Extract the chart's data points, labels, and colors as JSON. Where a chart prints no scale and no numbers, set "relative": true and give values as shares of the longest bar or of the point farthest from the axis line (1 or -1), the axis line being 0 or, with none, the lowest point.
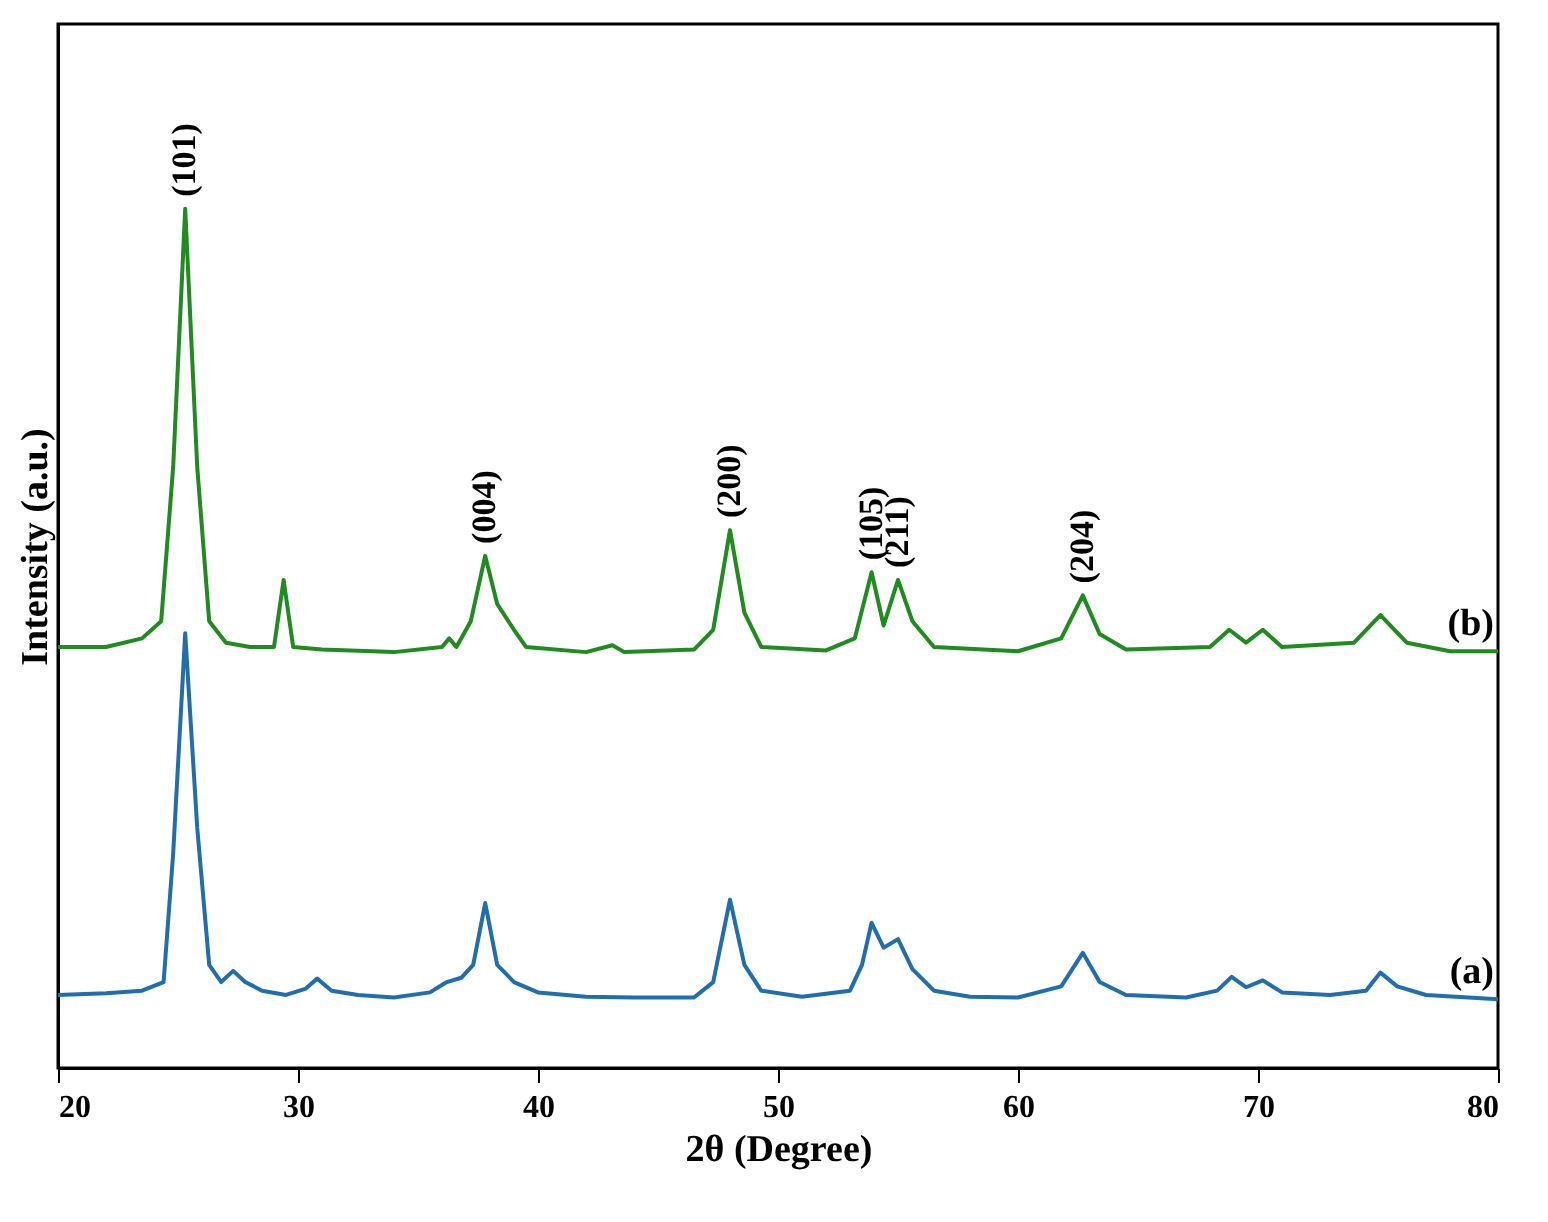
{
  "chart_data": {
    "type": "line",
    "xlabel": "2θ (Degree)",
    "ylabel": "Intensity (a.u.)",
    "relative": true,
    "xlim": [
      20,
      80
    ],
    "xticks": [
      20,
      30,
      40,
      50,
      60,
      70,
      80
    ],
    "grid": false,
    "marker": "none",
    "line_style": "solid",
    "series": [
      {
        "name": "(a)",
        "color": "#1f6fb0",
        "x": [
          20,
          22,
          23.5,
          24.4,
          24.8,
          25.3,
          25.8,
          26.3,
          26.8,
          27.3,
          27.8,
          28.5,
          29.5,
          30.3,
          30.8,
          31.4,
          32.5,
          34,
          35.5,
          36.2,
          36.8,
          37.3,
          37.8,
          38.3,
          39,
          40,
          42,
          44,
          46.5,
          47.3,
          48,
          48.6,
          49.3,
          51,
          53,
          53.5,
          53.9,
          54.4,
          55,
          55.6,
          56.5,
          58,
          60,
          61.8,
          62.7,
          63.4,
          64.5,
          67,
          68.3,
          68.9,
          69.5,
          70.2,
          71,
          73,
          74.5,
          75.1,
          75.8,
          77,
          80
        ],
        "values": [
          0.085,
          0.087,
          0.09,
          0.1,
          0.25,
          0.506,
          0.28,
          0.12,
          0.1,
          0.113,
          0.1,
          0.09,
          0.085,
          0.092,
          0.104,
          0.09,
          0.085,
          0.082,
          0.088,
          0.1,
          0.105,
          0.12,
          0.192,
          0.12,
          0.1,
          0.088,
          0.083,
          0.082,
          0.082,
          0.1,
          0.196,
          0.12,
          0.09,
          0.083,
          0.09,
          0.12,
          0.169,
          0.14,
          0.15,
          0.115,
          0.09,
          0.083,
          0.082,
          0.095,
          0.134,
          0.1,
          0.085,
          0.082,
          0.09,
          0.106,
          0.094,
          0.102,
          0.088,
          0.085,
          0.09,
          0.111,
          0.095,
          0.085,
          0.08
        ]
      },
      {
        "name": "(b)",
        "color": "#1e8c1e",
        "x": [
          20,
          22,
          23.5,
          24.3,
          24.8,
          25.3,
          25.8,
          26.3,
          27,
          28,
          29,
          29.4,
          29.8,
          31,
          34,
          36,
          36.3,
          36.6,
          37.2,
          37.8,
          38.3,
          39,
          39.5,
          42,
          43.1,
          43.6,
          46.5,
          47.3,
          48,
          48.6,
          49.3,
          52,
          53.2,
          53.9,
          54.4,
          55,
          55.6,
          56.5,
          60,
          61.8,
          62.7,
          63.4,
          64.5,
          68,
          68.8,
          69.5,
          70.2,
          71,
          74,
          75.1,
          76.2,
          78,
          80
        ],
        "values": [
          0.49,
          0.49,
          0.5,
          0.52,
          0.7,
          1.0,
          0.7,
          0.52,
          0.495,
          0.49,
          0.49,
          0.568,
          0.49,
          0.487,
          0.484,
          0.49,
          0.5,
          0.49,
          0.52,
          0.596,
          0.54,
          0.51,
          0.49,
          0.484,
          0.492,
          0.484,
          0.487,
          0.51,
          0.626,
          0.53,
          0.49,
          0.486,
          0.5,
          0.577,
          0.515,
          0.568,
          0.52,
          0.49,
          0.485,
          0.5,
          0.55,
          0.505,
          0.487,
          0.49,
          0.51,
          0.495,
          0.51,
          0.49,
          0.495,
          0.527,
          0.495,
          0.485,
          0.485
        ]
      }
    ],
    "annotations": [
      {
        "text": "(101)",
        "x": 25.3,
        "y": 1.0
      },
      {
        "text": "(004)",
        "x": 37.8,
        "y": 0.596
      },
      {
        "text": "(200)",
        "x": 48,
        "y": 0.626
      },
      {
        "text": "(105)",
        "x": 53.9,
        "y": 0.577
      },
      {
        "text": "(211)",
        "x": 55,
        "y": 0.568
      },
      {
        "text": "(204)",
        "x": 62.7,
        "y": 0.55
      }
    ]
  }
}
